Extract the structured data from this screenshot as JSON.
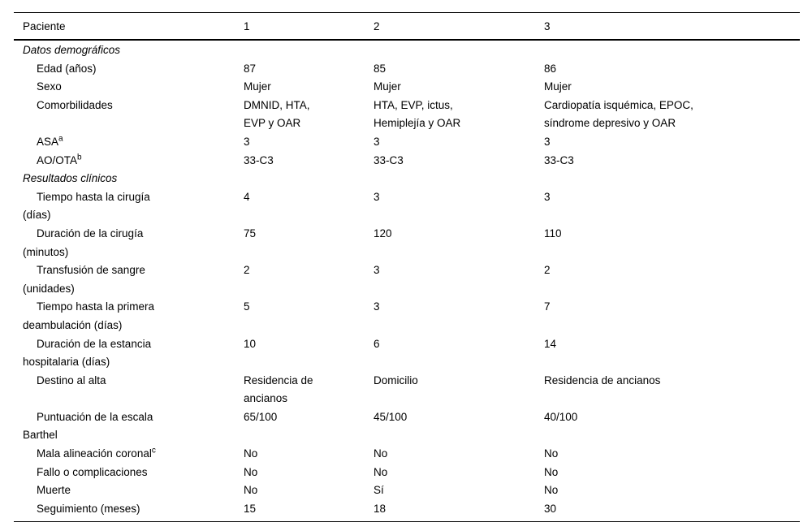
{
  "table": {
    "header": {
      "label": "Paciente",
      "columns": [
        "1",
        "2",
        "3"
      ]
    },
    "rows": [
      {
        "type": "section",
        "label": "Datos demográficos"
      },
      {
        "type": "data",
        "label": "Edad (años)",
        "values": [
          "87",
          "85",
          "86"
        ]
      },
      {
        "type": "data",
        "label": "Sexo",
        "values": [
          "Mujer",
          "Mujer",
          "Mujer"
        ]
      },
      {
        "type": "data",
        "label": "Comorbilidades",
        "values": [
          "DMNID, HTA,\nEVP y OAR",
          "HTA, EVP, ictus,\nHemiplejía y OAR",
          "Cardiopatía isquémica, EPOC,\nsíndrome depresivo y OAR"
        ]
      },
      {
        "type": "data",
        "label": "ASA",
        "sup": "a",
        "values": [
          "3",
          "3",
          "3"
        ]
      },
      {
        "type": "data",
        "label": "AO/OTA",
        "sup": "b",
        "values": [
          "33-C3",
          "33-C3",
          "33-C3"
        ]
      },
      {
        "type": "section",
        "label": "Resultados clínicos"
      },
      {
        "type": "data",
        "label": "Tiempo hasta la cirugía\n(días)",
        "values": [
          "4",
          "3",
          "3"
        ]
      },
      {
        "type": "data",
        "label": "Duración de la cirugía\n(minutos)",
        "values": [
          "75",
          "120",
          "110"
        ]
      },
      {
        "type": "data",
        "label": "Transfusión de sangre\n(unidades)",
        "values": [
          "2",
          "3",
          "2"
        ]
      },
      {
        "type": "data",
        "label": "Tiempo hasta la primera\ndeambulación (días)",
        "values": [
          "5",
          "3",
          "7"
        ]
      },
      {
        "type": "data",
        "label": "Duración de la estancia\nhospitalaria (días)",
        "values": [
          "10",
          "6",
          "14"
        ]
      },
      {
        "type": "data",
        "label": "Destino al alta",
        "values": [
          "Residencia de\nancianos",
          "Domicilio",
          "Residencia de ancianos"
        ]
      },
      {
        "type": "data",
        "label": "Puntuación de la escala\nBarthel",
        "values": [
          "65/100",
          "45/100",
          "40/100"
        ]
      },
      {
        "type": "data",
        "label": "Mala alineación coronal",
        "sup": "c",
        "values": [
          "No",
          "No",
          "No"
        ]
      },
      {
        "type": "data",
        "label": "Fallo o complicaciones",
        "values": [
          "No",
          "No",
          "No"
        ]
      },
      {
        "type": "data",
        "label": "Muerte",
        "values": [
          "No",
          "Sí",
          "No"
        ]
      },
      {
        "type": "data",
        "label": "Seguimiento (meses)",
        "values": [
          "15",
          "18",
          "30"
        ]
      }
    ]
  }
}
